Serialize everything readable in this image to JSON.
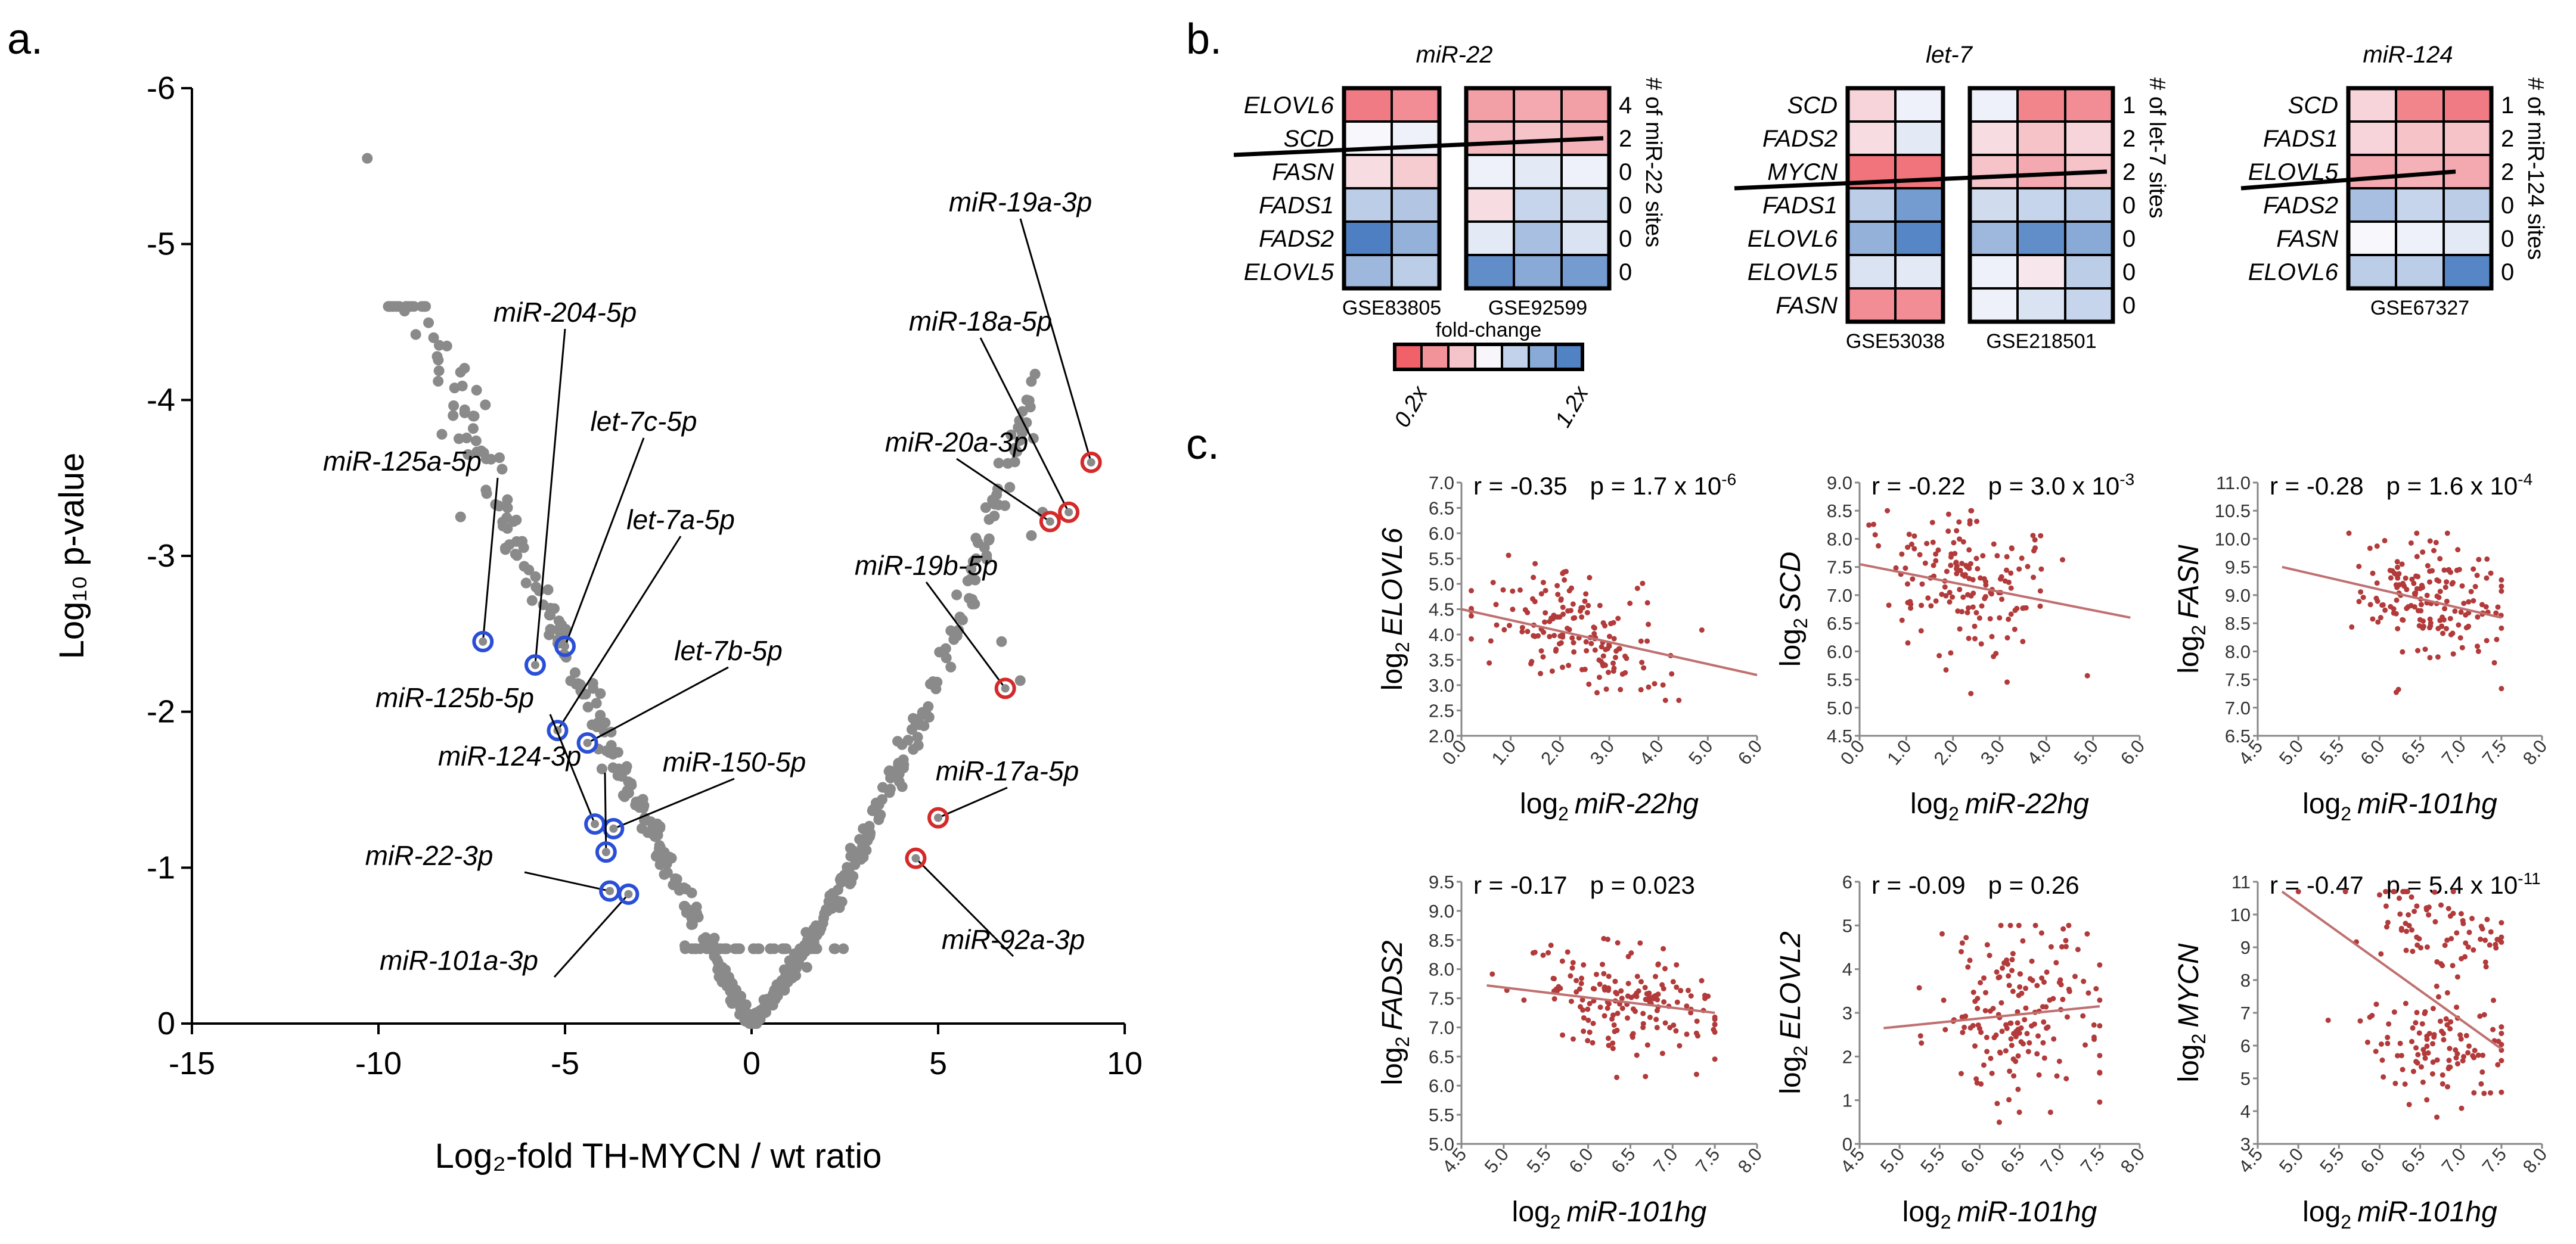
{
  "panels": {
    "a": "a.",
    "b": "b.",
    "c": "c."
  },
  "colors": {
    "dot": "#8a8a8a",
    "blue_ring": "#2a4fd6",
    "red_ring": "#d42a2a",
    "scatter": "#b23a3a",
    "line": "#c07070",
    "heat_blue": "#2f6ab8",
    "heat_red": "#ee3e48"
  },
  "chart_data": [
    {
      "type": "scatter",
      "id": "volcano",
      "xlabel": "Log₂-fold TH-MYCN / wt ratio",
      "ylabel": "Log₁₀ p-value",
      "xlim": [
        -15,
        10
      ],
      "ylim": [
        0,
        -6
      ],
      "xticks": [
        "-15",
        "-10",
        "-5",
        "0",
        "5",
        "10"
      ],
      "yticks": [
        "0",
        "-1",
        "-2",
        "-3",
        "-4",
        "-5",
        "-6"
      ],
      "labels": [
        {
          "name": "miR-125a-5p",
          "x": -7.2,
          "y": -2.45,
          "group": "down"
        },
        {
          "name": "miR-204-5p",
          "x": -5.8,
          "y": -2.3,
          "group": "down"
        },
        {
          "name": "let-7c-5p",
          "x": -5.0,
          "y": -2.42,
          "group": "down"
        },
        {
          "name": "let-7a-5p",
          "x": -5.2,
          "y": -1.88,
          "group": "down"
        },
        {
          "name": "let-7b-5p",
          "x": -4.4,
          "y": -1.8,
          "group": "down"
        },
        {
          "name": "miR-125b-5p",
          "x": -4.2,
          "y": -1.28,
          "group": "down"
        },
        {
          "name": "miR-150-5p",
          "x": -3.7,
          "y": -1.25,
          "group": "down"
        },
        {
          "name": "miR-124-3p",
          "x": -3.9,
          "y": -1.1,
          "group": "down"
        },
        {
          "name": "miR-22-3p",
          "x": -3.8,
          "y": -0.85,
          "group": "down"
        },
        {
          "name": "miR-101a-3p",
          "x": -3.3,
          "y": -0.83,
          "group": "down"
        },
        {
          "name": "miR-19a-3p",
          "x": 9.1,
          "y": -3.6,
          "group": "up"
        },
        {
          "name": "miR-18a-5p",
          "x": 8.5,
          "y": -3.28,
          "group": "up"
        },
        {
          "name": "miR-20a-3p",
          "x": 8.0,
          "y": -3.22,
          "group": "up"
        },
        {
          "name": "miR-19b-5p",
          "x": 6.8,
          "y": -2.15,
          "group": "up"
        },
        {
          "name": "miR-17a-5p",
          "x": 5.0,
          "y": -1.32,
          "group": "up"
        },
        {
          "name": "miR-92a-3p",
          "x": 4.4,
          "y": -1.06,
          "group": "up"
        }
      ]
    },
    {
      "type": "heatmap",
      "id": "mir22",
      "title": "miR-22",
      "genes": [
        "ELOVL6",
        "SCD",
        "FASN",
        "FADS1",
        "FADS2",
        "ELOVL5"
      ],
      "sites": [
        "4",
        "2",
        "0",
        "0",
        "0",
        "0"
      ],
      "sites_label": "# of miR-22 sites",
      "datasets": [
        {
          "name": "GSE83805",
          "cols": 2,
          "values": [
            [
              -0.7,
              -0.6
            ],
            [
              0.0,
              0.05
            ],
            [
              -0.15,
              -0.25
            ],
            [
              0.3,
              0.35
            ],
            [
              0.85,
              0.5
            ],
            [
              0.45,
              0.3
            ]
          ]
        },
        {
          "name": "GSE92599",
          "cols": 3,
          "values": [
            [
              -0.5,
              -0.45,
              -0.5
            ],
            [
              -0.35,
              -0.3,
              -0.4
            ],
            [
              0.05,
              0.1,
              0.05
            ],
            [
              -0.15,
              0.25,
              0.2
            ],
            [
              0.1,
              0.4,
              0.15
            ],
            [
              0.75,
              0.55,
              0.65
            ]
          ]
        }
      ]
    },
    {
      "type": "heatmap",
      "id": "let7",
      "title": "let-7",
      "genes": [
        "SCD",
        "FADS2",
        "MYCN",
        "FADS1",
        "ELOVL6",
        "ELOVL5",
        "FASN"
      ],
      "sites": [
        "1",
        "2",
        "2",
        "0",
        "0",
        "0",
        "0"
      ],
      "sites_label": "# of let-7 sites",
      "datasets": [
        {
          "name": "GSE53038",
          "cols": 2,
          "values": [
            [
              -0.2,
              0.05
            ],
            [
              -0.15,
              0.1
            ],
            [
              -0.75,
              -0.75
            ],
            [
              0.3,
              0.65
            ],
            [
              0.5,
              0.8
            ],
            [
              0.15,
              0.1
            ],
            [
              -0.6,
              -0.6
            ]
          ]
        },
        {
          "name": "GSE218501",
          "cols": 3,
          "values": [
            [
              0.05,
              -0.65,
              -0.6
            ],
            [
              -0.15,
              -0.3,
              -0.2
            ],
            [
              -0.3,
              -0.45,
              -0.3
            ],
            [
              0.2,
              0.25,
              0.3
            ],
            [
              0.45,
              0.75,
              0.55
            ],
            [
              0.05,
              -0.1,
              0.3
            ],
            [
              0.05,
              0.15,
              0.25
            ]
          ]
        }
      ]
    },
    {
      "type": "heatmap",
      "id": "mir124",
      "title": "miR-124",
      "genes": [
        "SCD",
        "FADS1",
        "ELOVL5",
        "FADS2",
        "FASN",
        "ELOVL6"
      ],
      "sites": [
        "1",
        "2",
        "2",
        "0",
        "0",
        "0"
      ],
      "sites_label": "# of miR-124 sites",
      "datasets": [
        {
          "name": "GSE67327",
          "cols": 3,
          "values": [
            [
              -0.2,
              -0.65,
              -0.7
            ],
            [
              -0.2,
              -0.3,
              -0.3
            ],
            [
              -0.45,
              -0.4,
              -0.45
            ],
            [
              0.4,
              0.25,
              0.3
            ],
            [
              0.0,
              0.05,
              0.1
            ],
            [
              0.3,
              0.3,
              0.8
            ]
          ]
        }
      ]
    },
    {
      "type": "legend",
      "id": "foldchange",
      "title": "fold-change",
      "min_label": "0.2x",
      "max_label": "1.2x"
    },
    {
      "type": "scatter",
      "id": "c1",
      "xlabel_pre": "log",
      "xsub": "2",
      "xgene": "miR-22hg",
      "ylabel_pre": "log",
      "ysub": "2",
      "ygene": "ELOVL6",
      "r": "r = -0.35",
      "p": "p = 1.7 x 10",
      "p_exp": "-6",
      "xlim": [
        0,
        6
      ],
      "ylim": [
        2,
        7
      ],
      "xticks": [
        "0.0",
        "1.0",
        "2.0",
        "3.0",
        "4.0",
        "5.0",
        "6.0"
      ],
      "yticks": [
        "2.0",
        "2.5",
        "3.0",
        "3.5",
        "4.0",
        "4.5",
        "5.0",
        "5.5",
        "6.0",
        "6.5",
        "7.0"
      ],
      "fit": [
        0,
        4.5,
        6,
        3.2
      ],
      "seed": 11,
      "n": 160,
      "mx": 2.4,
      "sx": 0.9,
      "my": 4.0,
      "sy": 0.6,
      "xmin": 0.2,
      "xmax": 5.8,
      "ymin": 2.7,
      "ymax": 5.8
    },
    {
      "type": "scatter",
      "id": "c2",
      "xlabel_pre": "log",
      "xsub": "2",
      "xgene": "miR-22hg",
      "ylabel_pre": "log",
      "ysub": "2",
      "ygene": "SCD",
      "r": "r = -0.22",
      "p": "p = 3.0 x 10",
      "p_exp": "-3",
      "xlim": [
        0,
        6
      ],
      "ylim": [
        4.5,
        9
      ],
      "xticks": [
        "0.0",
        "1.0",
        "2.0",
        "3.0",
        "4.0",
        "5.0",
        "6.0"
      ],
      "yticks": [
        "4.5",
        "5.0",
        "5.5",
        "6.0",
        "6.5",
        "7.0",
        "7.5",
        "8.0",
        "8.5",
        "9.0"
      ],
      "fit": [
        0,
        7.55,
        5.8,
        6.6
      ],
      "seed": 23,
      "n": 160,
      "mx": 2.3,
      "sx": 0.9,
      "my": 7.1,
      "sy": 0.65,
      "xmin": 0.2,
      "xmax": 5.8,
      "ymin": 4.9,
      "ymax": 8.5
    },
    {
      "type": "scatter",
      "id": "c3",
      "xlabel_pre": "log",
      "xsub": "2",
      "xgene": "miR-101hg",
      "ylabel_pre": "log",
      "ysub": "2",
      "ygene": "FASN",
      "r": "r = -0.28",
      "p": "p = 1.6 x 10",
      "p_exp": "-4",
      "xlim": [
        4.5,
        8
      ],
      "ylim": [
        6.5,
        11
      ],
      "xticks": [
        "4.5",
        "5.0",
        "5.5",
        "6.0",
        "6.5",
        "7.0",
        "7.5",
        "8.0"
      ],
      "yticks": [
        "6.5",
        "7.0",
        "7.5",
        "8.0",
        "8.5",
        "9.0",
        "9.5",
        "10.0",
        "10.5",
        "11.0"
      ],
      "fit": [
        4.8,
        9.5,
        7.5,
        8.6
      ],
      "seed": 37,
      "n": 170,
      "mx": 6.6,
      "sx": 0.5,
      "my": 8.95,
      "sy": 0.55,
      "xmin": 4.8,
      "xmax": 7.5,
      "ymin": 6.9,
      "ymax": 10.1
    },
    {
      "type": "scatter",
      "id": "c4",
      "xlabel_pre": "log",
      "xsub": "2",
      "xgene": "miR-101hg",
      "ylabel_pre": "log",
      "ysub": "2",
      "ygene": "FADS2",
      "r": "r = -0.17",
      "p": "p = 0.023",
      "p_exp": "",
      "xlim": [
        4.5,
        8
      ],
      "ylim": [
        5,
        9.5
      ],
      "xticks": [
        "4.5",
        "5.0",
        "5.5",
        "6.0",
        "6.5",
        "7.0",
        "7.5",
        "8.0"
      ],
      "yticks": [
        "5.0",
        "5.5",
        "6.0",
        "6.5",
        "7.0",
        "7.5",
        "8.0",
        "8.5",
        "9.0",
        "9.5"
      ],
      "fit": [
        4.8,
        7.72,
        7.5,
        7.25
      ],
      "seed": 53,
      "n": 170,
      "mx": 6.5,
      "sx": 0.55,
      "my": 7.5,
      "sy": 0.45,
      "xmin": 4.8,
      "xmax": 7.5,
      "ymin": 5.5,
      "ymax": 9.0
    },
    {
      "type": "scatter",
      "id": "c5",
      "xlabel_pre": "log",
      "xsub": "2",
      "xgene": "miR-101hg",
      "ylabel_pre": "log",
      "ysub": "2",
      "ygene": "ELOVL2",
      "r": "r = -0.09",
      "p": "p = 0.26",
      "p_exp": "",
      "xlim": [
        4.5,
        8
      ],
      "ylim": [
        0,
        6
      ],
      "xticks": [
        "4.5",
        "5.0",
        "5.5",
        "6.0",
        "6.5",
        "7.0",
        "7.5",
        "8.0"
      ],
      "yticks": [
        "0",
        "1",
        "2",
        "3",
        "4",
        "5",
        "6"
      ],
      "fit": [
        4.8,
        2.65,
        7.5,
        3.15
      ],
      "seed": 71,
      "n": 170,
      "mx": 6.5,
      "sx": 0.55,
      "my": 3.0,
      "sy": 1.1,
      "xmin": 4.8,
      "xmax": 7.5,
      "ymin": 0.1,
      "ymax": 5.0
    },
    {
      "type": "scatter",
      "id": "c6",
      "xlabel_pre": "log",
      "xsub": "2",
      "xgene": "miR-101hg",
      "ylabel_pre": "log",
      "ysub": "2",
      "ygene": "MYCN",
      "r": "r = -0.47",
      "p": "p = 5.4 x 10",
      "p_exp": "-11",
      "xlim": [
        4.5,
        8
      ],
      "ylim": [
        3,
        11
      ],
      "xticks": [
        "4.5",
        "5.0",
        "5.5",
        "6.0",
        "6.5",
        "7.0",
        "7.5",
        "8.0"
      ],
      "yticks": [
        "3",
        "4",
        "5",
        "6",
        "7",
        "8",
        "9",
        "10",
        "11"
      ],
      "fit": [
        4.8,
        10.7,
        7.5,
        5.9
      ],
      "seed": 89,
      "n": 190,
      "mx": 6.7,
      "sx": 0.5,
      "my": 7.2,
      "sy": 2.1,
      "xmin": 4.8,
      "xmax": 7.5,
      "ymin": 3.7,
      "ymax": 10.7,
      "bimodal": true
    }
  ]
}
